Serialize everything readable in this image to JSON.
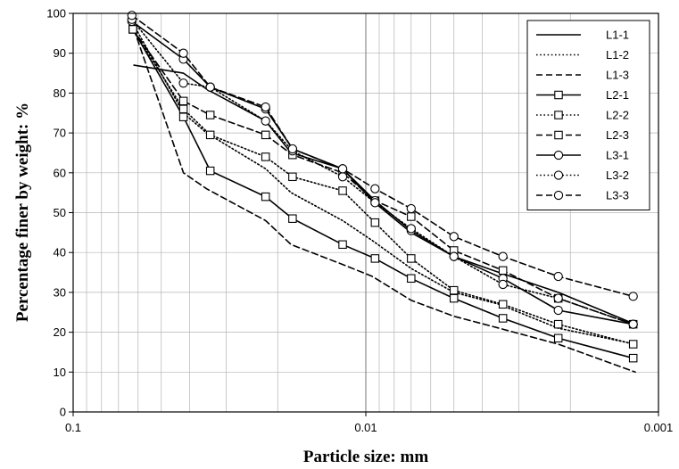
{
  "chart_data": {
    "type": "line",
    "xlabel": "Particle size: mm",
    "ylabel": "Percentage finer by weight: %",
    "x_scale": "log",
    "x_reversed": true,
    "xlim": [
      0.1,
      0.001
    ],
    "ylim": [
      0,
      100
    ],
    "x_tick_labels": [
      "0.1",
      "0.01",
      "0.001"
    ],
    "y_tick_labels": [
      "0",
      "10",
      "20",
      "30",
      "40",
      "50",
      "60",
      "70",
      "80",
      "90",
      "100"
    ],
    "grid": true,
    "legend_position": "top-right",
    "series": [
      {
        "name": "L1-1",
        "line": "solid",
        "marker": "none",
        "x": [
          0.062,
          0.042,
          0.035,
          0.022,
          0.018,
          0.012,
          0.0095,
          0.007,
          0.005,
          0.0035,
          0.0022,
          0.0012
        ],
        "y": [
          87,
          85,
          81,
          73,
          65,
          61,
          53,
          45,
          39,
          35,
          30,
          22
        ]
      },
      {
        "name": "L1-2",
        "line": "dotted",
        "marker": "none",
        "x": [
          0.062,
          0.042,
          0.035,
          0.022,
          0.018,
          0.012,
          0.0095,
          0.007,
          0.005,
          0.0035,
          0.0022,
          0.0012
        ],
        "y": [
          97,
          75,
          70,
          61,
          55,
          48,
          43,
          36,
          30,
          27,
          21,
          17
        ]
      },
      {
        "name": "L1-3",
        "line": "dashed",
        "marker": "none",
        "x": [
          0.062,
          0.042,
          0.035,
          0.022,
          0.018,
          0.012,
          0.0095,
          0.007,
          0.005,
          0.0035,
          0.0022,
          0.0012
        ],
        "y": [
          96,
          60,
          56,
          48,
          42,
          37,
          34,
          28,
          24,
          21,
          17,
          10
        ]
      },
      {
        "name": "L2-1",
        "line": "solid",
        "marker": "square",
        "x": [
          0.0625,
          0.042,
          0.034,
          0.022,
          0.0178,
          0.012,
          0.0093,
          0.007,
          0.005,
          0.0034,
          0.0022,
          0.00122
        ],
        "y": [
          96,
          74,
          60.5,
          54,
          48.5,
          42,
          38.5,
          33.5,
          28.5,
          23.5,
          18.5,
          13.5
        ]
      },
      {
        "name": "L2-2",
        "line": "dotted",
        "marker": "square",
        "x": [
          0.0625,
          0.042,
          0.034,
          0.022,
          0.0178,
          0.012,
          0.0093,
          0.007,
          0.005,
          0.0034,
          0.0022,
          0.00122
        ],
        "y": [
          96,
          76,
          69.5,
          64,
          59,
          55.5,
          47.5,
          38.5,
          30.5,
          27,
          22,
          17
        ]
      },
      {
        "name": "L2-3",
        "line": "dashed",
        "marker": "square",
        "x": [
          0.0625,
          0.042,
          0.034,
          0.022,
          0.0178,
          0.012,
          0.0093,
          0.007,
          0.005,
          0.0034,
          0.0022,
          0.00122
        ],
        "y": [
          96,
          78,
          74.5,
          69.5,
          64.5,
          60,
          53,
          49,
          40.5,
          35.5,
          28.5,
          22
        ]
      },
      {
        "name": "L3-1",
        "line": "solid",
        "marker": "circle",
        "x": [
          0.063,
          0.042,
          0.034,
          0.022,
          0.0178,
          0.012,
          0.0093,
          0.007,
          0.005,
          0.0034,
          0.0022,
          0.00122
        ],
        "y": [
          98,
          88.5,
          81.5,
          76,
          66,
          61,
          53,
          45.5,
          39,
          33.5,
          25.5,
          22
        ]
      },
      {
        "name": "L3-2",
        "line": "dotted",
        "marker": "circle",
        "x": [
          0.063,
          0.042,
          0.034,
          0.022,
          0.0178,
          0.012,
          0.0093,
          0.007,
          0.005,
          0.0034,
          0.0022,
          0.00122
        ],
        "y": [
          98.5,
          82.5,
          81.5,
          73,
          65.5,
          59,
          52.5,
          46,
          39,
          32,
          28.5,
          22
        ]
      },
      {
        "name": "L3-3",
        "line": "dashed",
        "marker": "circle",
        "x": [
          0.063,
          0.042,
          0.034,
          0.022,
          0.0178,
          0.012,
          0.0093,
          0.007,
          0.005,
          0.0034,
          0.0022,
          0.00122
        ],
        "y": [
          99.5,
          90,
          81.5,
          76.5,
          66,
          61,
          56,
          51,
          44,
          39,
          34,
          29
        ]
      }
    ]
  }
}
